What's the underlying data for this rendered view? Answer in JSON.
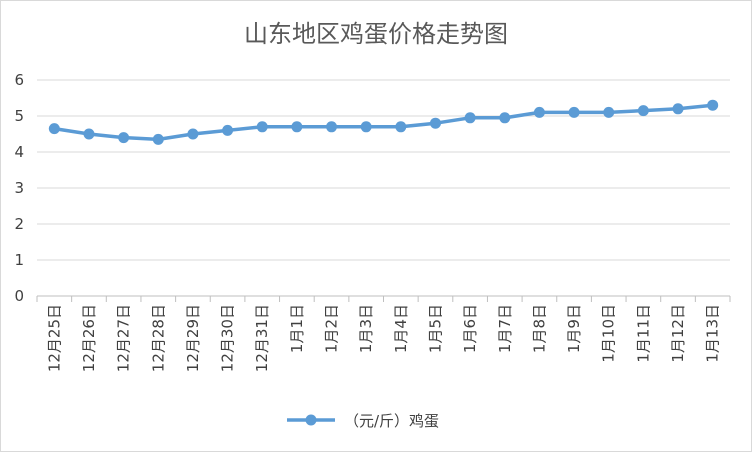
{
  "chart_data": {
    "type": "line",
    "title": "山东地区鸡蛋价格走势图",
    "categories": [
      "12月25日",
      "12月26日",
      "12月27日",
      "12月28日",
      "12月29日",
      "12月30日",
      "12月31日",
      "1月1日",
      "1月2日",
      "1月3日",
      "1月4日",
      "1月5日",
      "1月6日",
      "1月7日",
      "1月8日",
      "1月9日",
      "1月10日",
      "1月11日",
      "1月12日",
      "1月13日"
    ],
    "series": [
      {
        "name": "（元/斤）鸡蛋",
        "values": [
          4.65,
          4.5,
          4.4,
          4.35,
          4.5,
          4.6,
          4.7,
          4.7,
          4.7,
          4.7,
          4.7,
          4.8,
          4.95,
          4.95,
          5.1,
          5.1,
          5.1,
          5.15,
          5.2,
          5.3
        ],
        "color": "#5b9bd5"
      }
    ],
    "yticks": [
      "0",
      "1",
      "2",
      "3",
      "4",
      "5",
      "6"
    ],
    "ylim": [
      0,
      6
    ],
    "grid": true,
    "legend_position": "bottom",
    "gridline_color": "#d9d9d9",
    "axis_color": "#bfbfbf"
  }
}
